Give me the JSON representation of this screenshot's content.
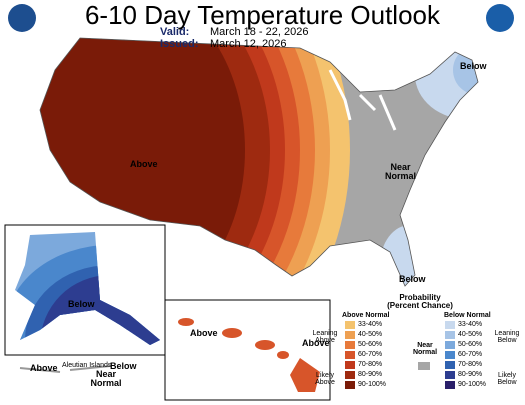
{
  "header": {
    "title": "6-10 Day Temperature Outlook",
    "valid_label": "Valid:",
    "valid": "March 18 - 22, 2026",
    "issued_label": "Issued:",
    "issued": "March 12, 2026"
  },
  "map_labels": {
    "conus_above": "Above",
    "conus_below_northeast": "Below",
    "conus_near_normal": "Near Normal",
    "conus_below_florida": "Below",
    "alaska_below": "Below",
    "aleutian_above": "Above",
    "aleutian_islands": "Aleutian Islands",
    "alaska_near_normal": "Near Normal",
    "alaska_below_southeast": "Below",
    "hawaii_above_west": "Above",
    "hawaii_above_east": "Above"
  },
  "legend": {
    "title": "Probability (Percent Chance)",
    "above_heading": "Above Normal",
    "near_heading": "Near Normal",
    "below_heading": "Below Normal",
    "leaning_above": "Leaning Above",
    "likely_above": "Likely Above",
    "leaning_below": "Leaning Below",
    "likely_below": "Likely Below",
    "near_color": "#a6a6a6",
    "above": [
      {
        "label": "33-40%",
        "color": "#f4c36e"
      },
      {
        "label": "40-50%",
        "color": "#eea052"
      },
      {
        "label": "50-60%",
        "color": "#e77a3b"
      },
      {
        "label": "60-70%",
        "color": "#d7552a"
      },
      {
        "label": "70-80%",
        "color": "#c0391c"
      },
      {
        "label": "80-90%",
        "color": "#9e2a10"
      },
      {
        "label": "90-100%",
        "color": "#7a1b08"
      }
    ],
    "below": [
      {
        "label": "33-40%",
        "color": "#c8d9ee"
      },
      {
        "label": "40-50%",
        "color": "#a7c4e6"
      },
      {
        "label": "50-60%",
        "color": "#7ca9dc"
      },
      {
        "label": "60-70%",
        "color": "#4a87cc"
      },
      {
        "label": "70-80%",
        "color": "#3062b0"
      },
      {
        "label": "80-90%",
        "color": "#2d3d90"
      },
      {
        "label": "90-100%",
        "color": "#2a1f6a"
      }
    ]
  }
}
